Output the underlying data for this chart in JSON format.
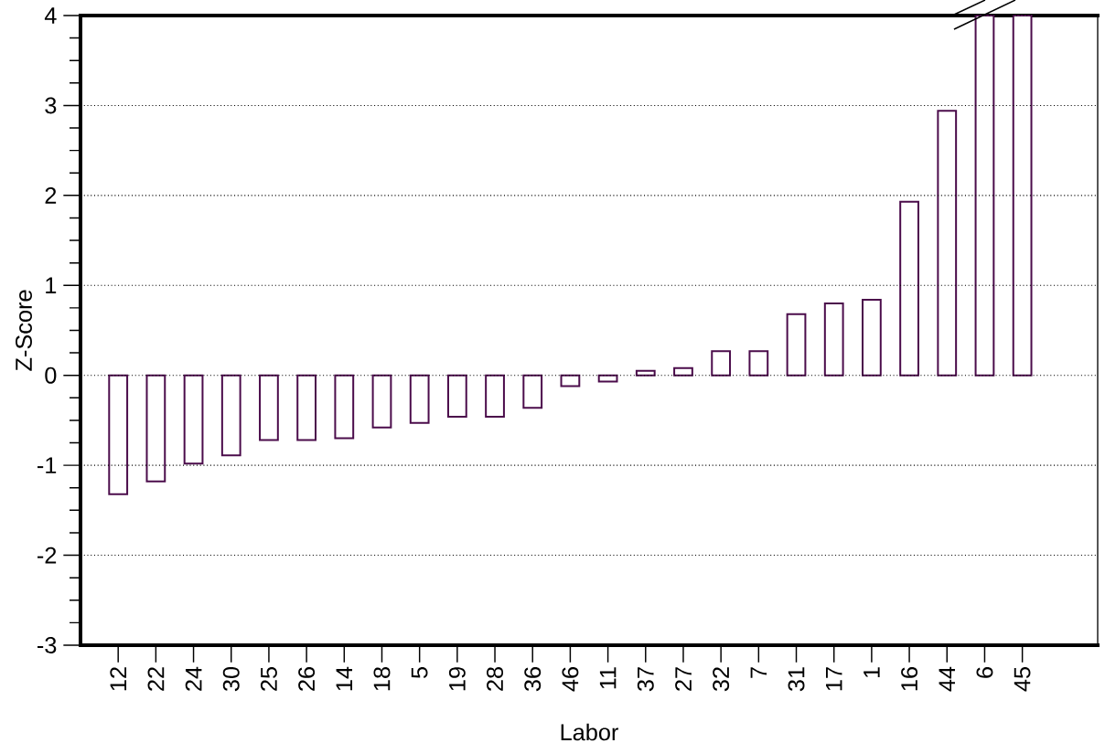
{
  "chart_data": {
    "type": "bar",
    "xlabel": "Labor",
    "ylabel": "Z-Score",
    "categories": [
      "12",
      "22",
      "24",
      "30",
      "25",
      "26",
      "14",
      "18",
      "5",
      "19",
      "28",
      "36",
      "46",
      "11",
      "37",
      "27",
      "32",
      "7",
      "31",
      "17",
      "1",
      "16",
      "44",
      "6",
      "45"
    ],
    "values": [
      -1.32,
      -1.18,
      -0.98,
      -0.89,
      -0.72,
      -0.72,
      -0.7,
      -0.58,
      -0.53,
      -0.46,
      -0.46,
      -0.36,
      -0.12,
      -0.07,
      0.05,
      0.08,
      0.27,
      0.27,
      0.68,
      0.8,
      0.84,
      1.93,
      2.94,
      4,
      4
    ],
    "color": "#4b0c4b",
    "ylim": [
      -3,
      4
    ],
    "yticks": [
      -3,
      -2,
      -1,
      0,
      1,
      2,
      3,
      4
    ],
    "grid": "y"
  }
}
